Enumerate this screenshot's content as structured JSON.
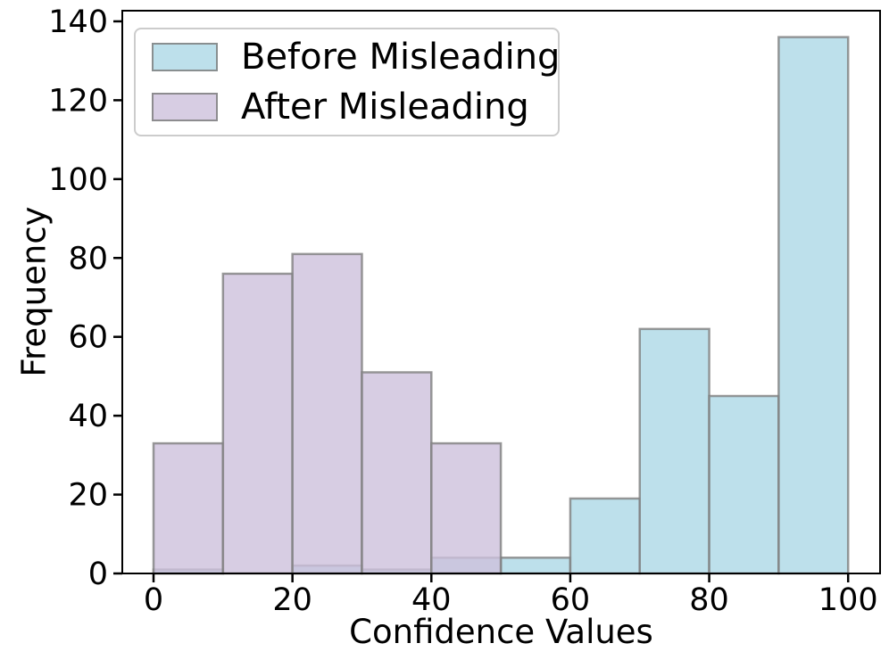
{
  "chart_data": {
    "type": "histogram",
    "title": "",
    "xlabel": "Confidence Values",
    "ylabel": "Frequency",
    "bin_edges": [
      0,
      10,
      20,
      30,
      40,
      50,
      60,
      70,
      80,
      90,
      100
    ],
    "series": [
      {
        "name": "Before Misleading",
        "color": "#ADD8E6",
        "values": [
          1,
          0,
          2,
          1,
          4,
          4,
          19,
          62,
          45,
          136
        ]
      },
      {
        "name": "After Misleading",
        "color": "#CDC0DC",
        "values": [
          33,
          76,
          81,
          51,
          33,
          0,
          0,
          0,
          0,
          0
        ]
      }
    ],
    "alpha": 0.8,
    "edge_color": "#808080",
    "axis_color": "#000000",
    "xticks": [
      0,
      20,
      40,
      60,
      80,
      100
    ],
    "yticks": [
      0,
      20,
      40,
      60,
      80,
      100,
      120,
      140
    ],
    "xlim": [
      -4.5,
      104.6
    ],
    "ylim": [
      0,
      142.7
    ],
    "grid": false,
    "legend_position": "upper left"
  }
}
